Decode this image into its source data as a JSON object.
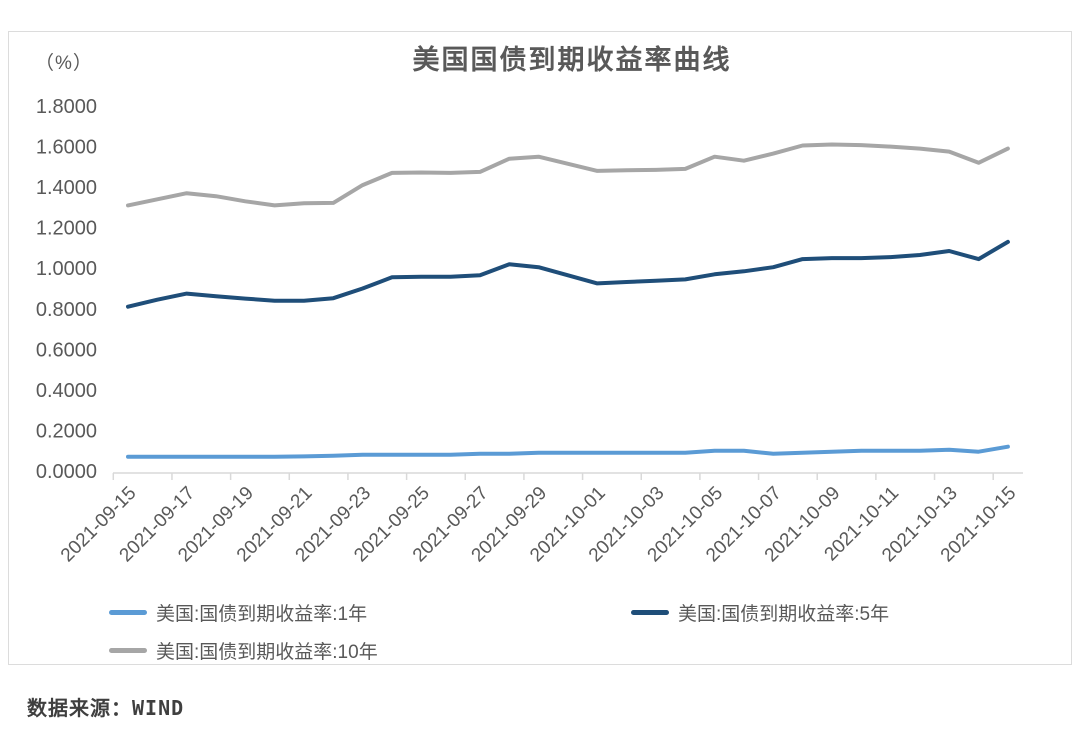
{
  "chart_data": {
    "type": "line",
    "title": "美国国债到期收益率曲线",
    "unit_label": "（%）",
    "ylim": [
      0,
      1.8
    ],
    "ytick_step": 0.2,
    "grid": false,
    "legend_position": "bottom-left-two-column",
    "y_ticks": [
      "1.8000",
      "1.6000",
      "1.4000",
      "1.2000",
      "1.0000",
      "0.8000",
      "0.6000",
      "0.4000",
      "0.2000",
      "0.0000"
    ],
    "x": [
      "2021-09-15",
      "2021-09-16",
      "2021-09-17",
      "2021-09-18",
      "2021-09-19",
      "2021-09-20",
      "2021-09-21",
      "2021-09-22",
      "2021-09-23",
      "2021-09-24",
      "2021-09-25",
      "2021-09-26",
      "2021-09-27",
      "2021-09-28",
      "2021-09-29",
      "2021-09-30",
      "2021-10-01",
      "2021-10-02",
      "2021-10-03",
      "2021-10-04",
      "2021-10-05",
      "2021-10-06",
      "2021-10-07",
      "2021-10-08",
      "2021-10-09",
      "2021-10-10",
      "2021-10-11",
      "2021-10-12",
      "2021-10-13",
      "2021-10-14",
      "2021-10-15"
    ],
    "x_tick_labels": [
      "2021-09-15",
      "2021-09-17",
      "2021-09-19",
      "2021-09-21",
      "2021-09-23",
      "2021-09-25",
      "2021-09-27",
      "2021-09-29",
      "2021-10-01",
      "2021-10-03",
      "2021-10-05",
      "2021-10-07",
      "2021-10-09",
      "2021-10-11",
      "2021-10-13",
      "2021-10-15"
    ],
    "series": [
      {
        "name": "美国:国债到期收益率:1年",
        "color": "#5B9BD5",
        "values": [
          0.07,
          0.07,
          0.07,
          0.07,
          0.07,
          0.07,
          0.072,
          0.075,
          0.08,
          0.08,
          0.08,
          0.08,
          0.085,
          0.085,
          0.09,
          0.09,
          0.09,
          0.09,
          0.09,
          0.09,
          0.1,
          0.1,
          0.085,
          0.09,
          0.095,
          0.1,
          0.1,
          0.1,
          0.105,
          0.095,
          0.12
        ]
      },
      {
        "name": "美国:国债到期收益率:5年",
        "color": "#1F4E79",
        "values": [
          0.81,
          0.845,
          0.875,
          0.862,
          0.85,
          0.84,
          0.84,
          0.852,
          0.9,
          0.955,
          0.958,
          0.958,
          0.965,
          1.02,
          1.005,
          0.965,
          0.925,
          0.932,
          0.938,
          0.945,
          0.97,
          0.985,
          1.005,
          1.045,
          1.05,
          1.05,
          1.055,
          1.065,
          1.085,
          1.045,
          1.13
        ]
      },
      {
        "name": "美国:国债到期收益率:10年",
        "color": "#A6A6A6",
        "values": [
          1.31,
          1.34,
          1.37,
          1.355,
          1.33,
          1.31,
          1.32,
          1.322,
          1.41,
          1.47,
          1.472,
          1.47,
          1.475,
          1.54,
          1.55,
          1.515,
          1.48,
          1.483,
          1.485,
          1.49,
          1.55,
          1.53,
          1.565,
          1.605,
          1.61,
          1.607,
          1.6,
          1.59,
          1.575,
          1.52,
          1.59
        ]
      }
    ]
  },
  "footer": {
    "source": "数据来源：WIND"
  },
  "colors": {
    "text": "#595959",
    "axis": "#D9D9D9",
    "border": "#DCDCDC",
    "caption": "#3F3F3F"
  }
}
